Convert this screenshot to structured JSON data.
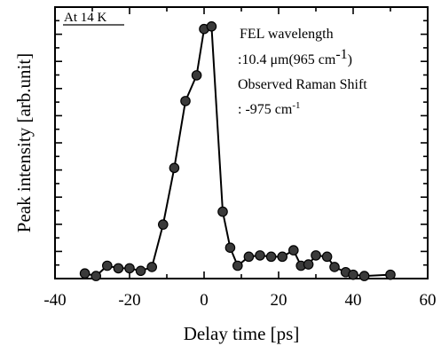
{
  "chart_data": {
    "type": "line",
    "title": "",
    "xlabel": "Delay time [ps]",
    "ylabel": "Peak intensity [arb.unit]",
    "xlim": [
      -40,
      60
    ],
    "xticks": [
      -40,
      -20,
      0,
      20,
      40,
      60
    ],
    "xtick_labels": [
      "-40",
      "-20",
      "0",
      "20",
      "40",
      "60"
    ],
    "ylim": [
      0,
      1
    ],
    "y_ticks_unlabeled": true,
    "grid": false,
    "marker": "filled-circle",
    "line_color": "#000000",
    "marker_fill": "#3a3a3a",
    "series": [
      {
        "x": [
          -32,
          -29,
          -26,
          -23,
          -20,
          -17,
          -14,
          -11,
          -8,
          -5,
          -2,
          0,
          2,
          5,
          7,
          9,
          12,
          15,
          18,
          21,
          24,
          26,
          28,
          30,
          33,
          35,
          38,
          40,
          43,
          50
        ],
        "y": [
          0.02,
          0.01,
          0.05,
          0.04,
          0.04,
          0.03,
          0.045,
          0.21,
          0.43,
          0.69,
          0.79,
          0.97,
          0.98,
          0.26,
          0.12,
          0.05,
          0.085,
          0.09,
          0.085,
          0.085,
          0.11,
          0.05,
          0.055,
          0.09,
          0.085,
          0.045,
          0.025,
          0.015,
          0.01,
          0.015
        ]
      }
    ],
    "annotations": {
      "tag": "At 14 K",
      "lines": [
        "FEL wavelength",
        ":10.4 μm(965 cm",
        "Observed Raman Shift",
        ": -975 cm"
      ],
      "sup1": "-1",
      "sup1_close": ")",
      "sup2": "-1"
    }
  }
}
